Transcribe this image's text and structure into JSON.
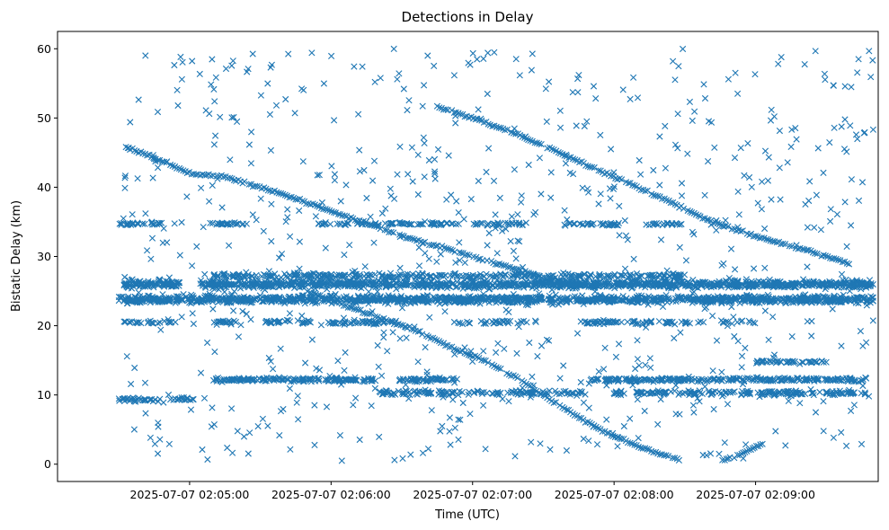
{
  "chart_data": {
    "type": "scatter",
    "title": "Detections in Delay",
    "xlabel": "Time (UTC)",
    "ylabel": "Bistatic Delay (km)",
    "x_unit": "seconds since 2025-07-07 02:04:00 UTC",
    "xlim": [
      4,
      352
    ],
    "ylim": [
      -2.5,
      62.5
    ],
    "x_ticks": [
      {
        "value": 60,
        "label": "2025-07-07 02:05:00"
      },
      {
        "value": 120,
        "label": "2025-07-07 02:06:00"
      },
      {
        "value": 180,
        "label": "2025-07-07 02:07:00"
      },
      {
        "value": 240,
        "label": "2025-07-07 02:08:00"
      },
      {
        "value": 300,
        "label": "2025-07-07 02:09:00"
      }
    ],
    "y_ticks": [
      0,
      10,
      20,
      30,
      40,
      50,
      60
    ],
    "marker": "x",
    "color": "#1f77b4",
    "grid": false,
    "series": [
      {
        "name": "track-falling-high",
        "kind": "line",
        "x": [
          33,
          41,
          50,
          60,
          75,
          95,
          120,
          150,
          180,
          210,
          232
        ],
        "y": [
          45.8,
          44.8,
          43.5,
          42.0,
          41.5,
          39.5,
          36.5,
          33.0,
          30.0,
          27.0,
          25.5
        ],
        "step": 0.9,
        "jitter": 0.25
      },
      {
        "name": "track-falling-upper-right",
        "kind": "line",
        "x": [
          165,
          180,
          200,
          220,
          240,
          260,
          280,
          300,
          320,
          340
        ],
        "y": [
          51.6,
          50.0,
          47.5,
          44.5,
          41.5,
          38.5,
          35.2,
          33.0,
          31.0,
          29.0
        ],
        "step": 0.9,
        "jitter": 0.25
      },
      {
        "name": "track-falling-to-zero",
        "kind": "line",
        "x": [
          110,
          125,
          140,
          155,
          170,
          185,
          200,
          212,
          225,
          240,
          255,
          268
        ],
        "y": [
          25.0,
          23.0,
          21.2,
          19.5,
          17.0,
          15.0,
          12.2,
          9.5,
          6.8,
          4.0,
          2.0,
          0.6
        ],
        "step": 0.9,
        "jitter": 0.25
      },
      {
        "name": "track-rising-end",
        "kind": "line",
        "x": [
          286,
          292,
          298,
          303
        ],
        "y": [
          0.5,
          1.2,
          2.1,
          3.0
        ],
        "step": 0.8,
        "jitter": 0.2
      },
      {
        "name": "band-26",
        "kind": "band",
        "x0": 32,
        "x1": 350,
        "y": 26.0,
        "spread": 0.8,
        "density": 4,
        "gaps": [
          [
            56,
            64
          ]
        ]
      },
      {
        "name": "band-24",
        "kind": "band",
        "x0": 30,
        "x1": 350,
        "y": 23.8,
        "spread": 0.8,
        "density": 4,
        "gaps": []
      },
      {
        "name": "band-27",
        "kind": "band",
        "x0": 70,
        "x1": 270,
        "y": 27.2,
        "spread": 0.5,
        "density": 1.6,
        "gaps": []
      },
      {
        "name": "band-34.7",
        "kind": "band",
        "x0": 30,
        "x1": 270,
        "y": 34.7,
        "spread": 0.3,
        "density": 1.2,
        "gaps": [
          [
            55,
            68
          ],
          [
            85,
            112
          ],
          [
            175,
            180
          ],
          [
            203,
            218
          ],
          [
            242,
            250
          ]
        ]
      },
      {
        "name": "band-20.5",
        "kind": "band",
        "x0": 32,
        "x1": 300,
        "y": 20.5,
        "spread": 0.4,
        "density": 1.3,
        "gaps": [
          [
            56,
            70
          ],
          [
            80,
            92
          ],
          [
            112,
            118
          ],
          [
            148,
            172
          ],
          [
            208,
            225
          ],
          [
            278,
            285
          ]
        ]
      },
      {
        "name": "band-12.2",
        "kind": "band",
        "x0": 70,
        "x1": 348,
        "y": 12.2,
        "spread": 0.4,
        "density": 2.2,
        "gaps": [
          [
            140,
            148
          ],
          [
            174,
            230
          ]
        ]
      },
      {
        "name": "band-10.5",
        "kind": "band",
        "x0": 140,
        "x1": 348,
        "y": 10.3,
        "spread": 0.5,
        "density": 1.6,
        "gaps": [
          [
            228,
            238
          ]
        ]
      },
      {
        "name": "band-9.3",
        "kind": "band",
        "x0": 30,
        "x1": 62,
        "y": 9.3,
        "spread": 0.4,
        "density": 1.5,
        "gaps": []
      },
      {
        "name": "band-14.8",
        "kind": "band",
        "x0": 300,
        "x1": 330,
        "y": 14.8,
        "spread": 0.3,
        "density": 1.5,
        "gaps": []
      },
      {
        "name": "noise",
        "kind": "noise",
        "count": 760,
        "x0": 30,
        "x1": 350,
        "y0": 0.5,
        "y1": 60
      }
    ]
  }
}
